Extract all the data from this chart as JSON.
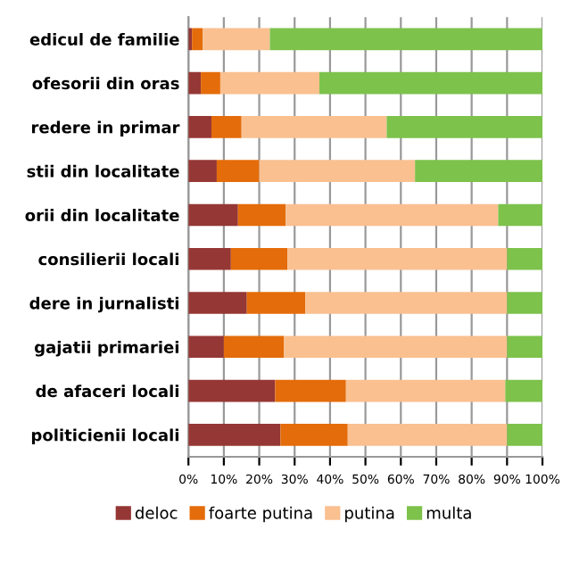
{
  "chart_data": {
    "type": "bar",
    "orientation": "horizontal",
    "stacked": true,
    "categories": [
      "edicul de familie",
      "ofesorii din oras",
      "redere in primar",
      "stii din localitate",
      "orii din localitate",
      "consilierii locali",
      "dere in jurnalisti",
      "gajatii primariei",
      "de afaceri locali",
      "politicienii locali"
    ],
    "series": [
      {
        "name": "deloc",
        "color": "#953735",
        "values": [
          1,
          3.5,
          6.5,
          8,
          14,
          12,
          16.5,
          10,
          24.5,
          26
        ]
      },
      {
        "name": "foarte putina",
        "color": "#e46c0a",
        "values": [
          3,
          5.5,
          8.5,
          12,
          13.5,
          16,
          16.5,
          17,
          20,
          19
        ]
      },
      {
        "name": "putina",
        "color": "#fac090",
        "values": [
          19,
          28,
          41,
          44,
          60,
          62,
          57,
          63,
          45,
          45
        ]
      },
      {
        "name": "multa",
        "color": "#7dc24b",
        "values": [
          77,
          63,
          44,
          36,
          12.5,
          10,
          10,
          10,
          10.5,
          10
        ]
      }
    ],
    "xlim": [
      0,
      100
    ],
    "xticks": [
      {
        "value": 0,
        "label": "0%"
      },
      {
        "value": 10,
        "label": "10%"
      },
      {
        "value": 20,
        "label": "20%"
      },
      {
        "value": 30,
        "label": "30%"
      },
      {
        "value": 40,
        "label": "40%"
      },
      {
        "value": 50,
        "label": "50%"
      },
      {
        "value": 60,
        "label": "60%"
      },
      {
        "value": 70,
        "label": "70%"
      },
      {
        "value": 80,
        "label": "80%"
      },
      {
        "value": 90,
        "label": "90%"
      },
      {
        "value": 100,
        "label": "100%"
      }
    ],
    "grid": "x",
    "legend": "bottom"
  }
}
